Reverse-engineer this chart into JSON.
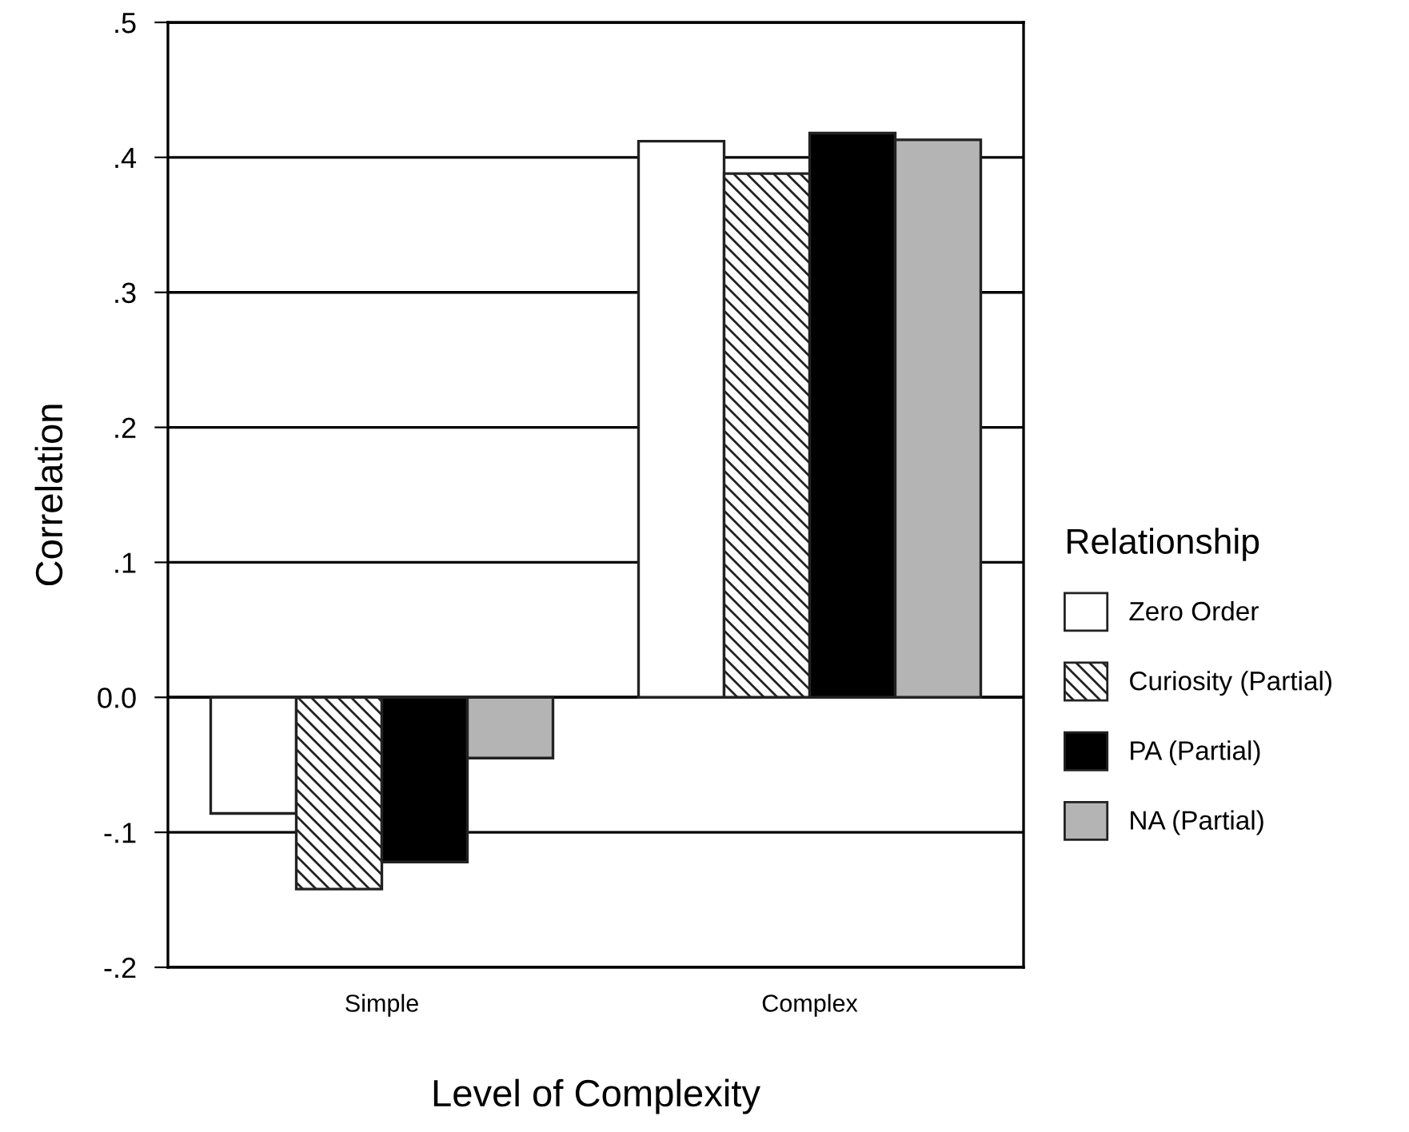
{
  "chart_data": {
    "type": "bar",
    "xlabel": "Level of Complexity",
    "ylabel": "Correlation",
    "legend_title": "Relationship",
    "categories": [
      "Simple",
      "Complex"
    ],
    "series": [
      {
        "name": "Zero Order",
        "color": "#ffffff",
        "values": [
          -0.086,
          0.412
        ]
      },
      {
        "name": "Curiosity (Partial)",
        "color": "#222222",
        "values": [
          -0.142,
          0.388
        ]
      },
      {
        "name": "PA (Partial)",
        "color": "#000000",
        "values": [
          -0.122,
          0.418
        ]
      },
      {
        "name": "NA (Partial)",
        "color": "#b4b4b4",
        "values": [
          -0.045,
          0.413
        ]
      }
    ],
    "ylim": [
      -0.2,
      0.5
    ],
    "yticks": [
      {
        "value": -0.2,
        "label": "-.2"
      },
      {
        "value": -0.1,
        "label": "-.1"
      },
      {
        "value": 0.0,
        "label": "0.0"
      },
      {
        "value": 0.1,
        "label": ".1"
      },
      {
        "value": 0.2,
        "label": ".2"
      },
      {
        "value": 0.3,
        "label": ".3"
      },
      {
        "value": 0.4,
        "label": ".4"
      },
      {
        "value": 0.5,
        "label": ".5"
      }
    ],
    "grid": "y",
    "legend": "right"
  }
}
